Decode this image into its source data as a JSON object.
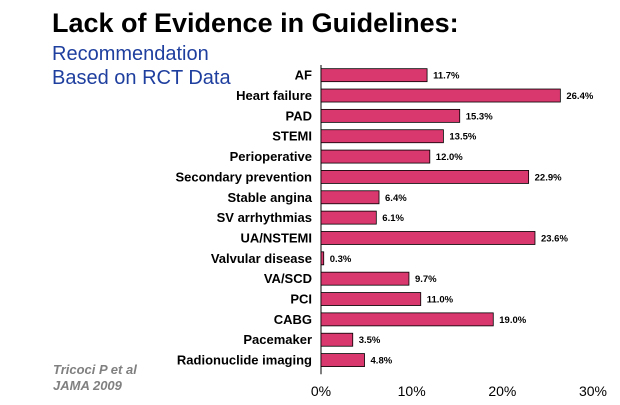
{
  "title": "Lack of Evidence in Guidelines:",
  "subtitle_line1": "Recommendation",
  "subtitle_line2": "Based on RCT Data",
  "source_line1": "Tricoci P et al",
  "source_line2": "JAMA 2009",
  "colors": {
    "bar": "#d9386f",
    "bar_stroke": "#000000",
    "subtitle": "#1f3f9f",
    "source": "#808080"
  },
  "chart_data": {
    "type": "bar",
    "orientation": "horizontal",
    "categories": [
      "AF",
      "Heart failure",
      "PAD",
      "STEMI",
      "Perioperative",
      "Secondary prevention",
      "Stable angina",
      "SV arrhythmias",
      "UA/NSTEMI",
      "Valvular disease",
      "VA/SCD",
      "PCI",
      "CABG",
      "Pacemaker",
      "Radionuclide imaging"
    ],
    "values": [
      11.7,
      26.4,
      15.3,
      13.5,
      12.0,
      22.9,
      6.4,
      6.1,
      23.6,
      0.3,
      9.7,
      11.0,
      19.0,
      3.5,
      4.8
    ],
    "data_labels": [
      "11.7%",
      "26.4%",
      "15.3%",
      "13.5%",
      "12.0%",
      "22.9%",
      "6.4%",
      "6.1%",
      "23.6%",
      "0.3%",
      "9.7%",
      "11.0%",
      "19.0%",
      "3.5%",
      "4.8%"
    ],
    "xlim": [
      0,
      30
    ],
    "xticks": [
      0,
      10,
      20,
      30
    ],
    "xtick_labels": [
      "0%",
      "10%",
      "20%",
      "30%"
    ],
    "grid": false,
    "legend": "none"
  }
}
